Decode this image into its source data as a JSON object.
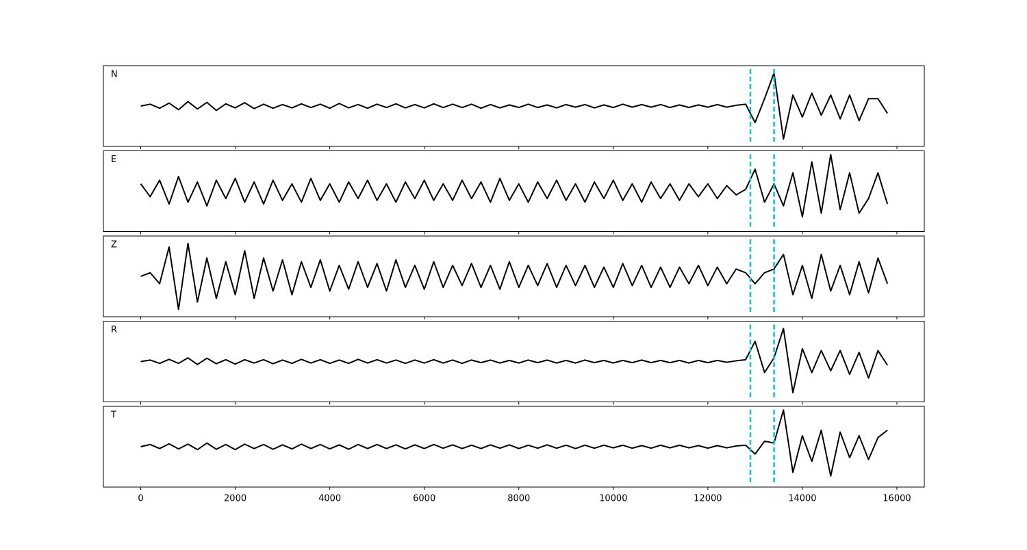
{
  "chart_data": {
    "type": "line",
    "x": [
      0,
      200,
      400,
      600,
      800,
      1000,
      1200,
      1400,
      1600,
      1800,
      2000,
      2200,
      2400,
      2600,
      2800,
      3000,
      3200,
      3400,
      3600,
      3800,
      4000,
      4200,
      4400,
      4600,
      4800,
      5000,
      5200,
      5400,
      5600,
      5800,
      6000,
      6200,
      6400,
      6600,
      6800,
      7000,
      7200,
      7400,
      7600,
      7800,
      8000,
      8200,
      8400,
      8600,
      8800,
      9000,
      9200,
      9400,
      9600,
      9800,
      10000,
      10200,
      10400,
      10600,
      10800,
      11000,
      11200,
      11400,
      11600,
      11800,
      12000,
      12200,
      12400,
      12600,
      12800,
      13000,
      13200,
      13400,
      13600,
      13800,
      14000,
      14200,
      14400,
      14600,
      14800,
      15000,
      15200,
      15400,
      15600,
      15800
    ],
    "series": [
      {
        "name": "N",
        "color": "#000000",
        "values": [
          0,
          0.05,
          -0.06,
          0.08,
          -0.1,
          0.12,
          -0.08,
          0.1,
          -0.12,
          0.06,
          -0.05,
          0.09,
          -0.07,
          0.05,
          -0.06,
          0.04,
          -0.05,
          0.06,
          -0.04,
          0.05,
          -0.06,
          0.07,
          -0.05,
          0.04,
          -0.06,
          0.05,
          -0.04,
          0.06,
          -0.05,
          0.04,
          -0.05,
          0.06,
          -0.04,
          0.05,
          -0.04,
          0.05,
          -0.06,
          0.04,
          -0.05,
          0.03,
          -0.04,
          0.05,
          -0.04,
          0.03,
          -0.05,
          0.04,
          -0.03,
          0.04,
          -0.05,
          0.03,
          -0.04,
          0.05,
          -0.03,
          0.04,
          -0.03,
          0.04,
          -0.04,
          0.03,
          -0.04,
          0.03,
          -0.03,
          0.04,
          -0.03,
          0.02,
          0.05,
          -0.45,
          0.2,
          0.9,
          -0.9,
          0.3,
          -0.3,
          0.35,
          -0.25,
          0.3,
          -0.35,
          0.3,
          -0.4,
          0.2,
          0.2,
          -0.2
        ]
      },
      {
        "name": "E",
        "color": "#000000",
        "values": [
          0.2,
          -0.15,
          0.3,
          -0.35,
          0.4,
          -0.3,
          0.25,
          -0.4,
          0.3,
          -0.2,
          0.35,
          -0.3,
          0.25,
          -0.35,
          0.3,
          -0.25,
          0.2,
          -0.3,
          0.35,
          -0.25,
          0.2,
          -0.3,
          0.25,
          -0.2,
          0.3,
          -0.25,
          0.2,
          -0.3,
          0.25,
          -0.2,
          0.3,
          -0.25,
          0.2,
          -0.25,
          0.3,
          -0.2,
          0.25,
          -0.3,
          0.35,
          -0.25,
          0.2,
          -0.3,
          0.25,
          -0.2,
          0.3,
          -0.25,
          0.2,
          -0.3,
          0.25,
          -0.2,
          0.3,
          -0.25,
          0.2,
          -0.3,
          0.25,
          -0.2,
          0.2,
          -0.25,
          0.2,
          -0.15,
          0.2,
          -0.2,
          0.15,
          -0.1,
          0.05,
          0.6,
          -0.3,
          0.2,
          -0.4,
          0.5,
          -0.7,
          0.8,
          -0.6,
          1.0,
          -0.5,
          0.5,
          -0.6,
          -0.2,
          0.5,
          -0.35
        ]
      },
      {
        "name": "Z",
        "color": "#000000",
        "values": [
          0,
          0.1,
          -0.2,
          0.8,
          -0.9,
          0.9,
          -0.7,
          0.5,
          -0.6,
          0.4,
          -0.5,
          0.7,
          -0.6,
          0.5,
          -0.4,
          0.45,
          -0.5,
          0.4,
          -0.3,
          0.45,
          -0.4,
          0.3,
          -0.35,
          0.4,
          -0.3,
          0.35,
          -0.4,
          0.45,
          -0.3,
          0.3,
          -0.35,
          0.4,
          -0.3,
          0.3,
          -0.25,
          0.35,
          -0.3,
          0.3,
          -0.35,
          0.4,
          -0.3,
          0.3,
          -0.25,
          0.35,
          -0.3,
          0.3,
          -0.25,
          0.3,
          -0.3,
          0.25,
          -0.3,
          0.35,
          -0.25,
          0.3,
          -0.3,
          0.25,
          -0.3,
          0.25,
          -0.2,
          0.3,
          -0.25,
          0.25,
          -0.2,
          0.2,
          0.1,
          -0.2,
          0.1,
          0.2,
          0.6,
          -0.5,
          0.3,
          -0.6,
          0.6,
          -0.4,
          0.3,
          -0.5,
          0.4,
          -0.45,
          0.5,
          -0.2
        ]
      },
      {
        "name": "R",
        "color": "#000000",
        "values": [
          0,
          0.04,
          -0.05,
          0.06,
          -0.05,
          0.1,
          -0.08,
          0.09,
          -0.06,
          0.05,
          -0.07,
          0.05,
          -0.04,
          0.05,
          -0.06,
          0.04,
          -0.05,
          0.06,
          -0.04,
          0.05,
          -0.05,
          0.04,
          -0.05,
          0.06,
          -0.04,
          0.05,
          -0.04,
          0.04,
          -0.05,
          0.04,
          -0.04,
          0.05,
          -0.04,
          0.04,
          -0.05,
          0.04,
          -0.03,
          0.04,
          -0.04,
          0.03,
          -0.04,
          0.04,
          -0.03,
          0.04,
          -0.04,
          0.03,
          -0.04,
          0.04,
          -0.03,
          0.03,
          -0.04,
          0.03,
          -0.03,
          0.04,
          -0.03,
          0.03,
          -0.03,
          0.03,
          -0.04,
          0.03,
          -0.03,
          0.03,
          -0.02,
          0.02,
          0.05,
          0.55,
          -0.3,
          0.1,
          0.9,
          -0.85,
          0.35,
          -0.3,
          0.3,
          -0.25,
          0.3,
          -0.35,
          0.25,
          -0.45,
          0.3,
          -0.1
        ]
      },
      {
        "name": "T",
        "color": "#000000",
        "values": [
          0,
          0.06,
          -0.05,
          0.08,
          -0.06,
          0.07,
          -0.08,
          0.1,
          -0.07,
          0.06,
          -0.08,
          0.07,
          -0.05,
          0.06,
          -0.07,
          0.05,
          -0.06,
          0.07,
          -0.05,
          0.06,
          -0.06,
          0.05,
          -0.07,
          0.06,
          -0.05,
          0.06,
          -0.05,
          0.05,
          -0.06,
          0.05,
          -0.05,
          0.06,
          -0.04,
          0.05,
          -0.05,
          0.04,
          -0.05,
          0.05,
          -0.04,
          0.05,
          -0.05,
          0.04,
          -0.04,
          0.05,
          -0.04,
          0.04,
          -0.05,
          0.04,
          -0.04,
          0.04,
          -0.03,
          0.04,
          -0.04,
          0.03,
          -0.04,
          0.04,
          -0.03,
          0.04,
          -0.03,
          0.03,
          -0.04,
          0.03,
          -0.03,
          0.02,
          0.04,
          -0.2,
          0.15,
          0.1,
          1.0,
          -0.7,
          0.3,
          -0.4,
          0.45,
          -0.8,
          0.4,
          -0.3,
          0.3,
          -0.35,
          0.25,
          0.45
        ]
      }
    ],
    "vlines": [
      12900,
      13400
    ],
    "vline_color": "#17becf",
    "xlim": [
      -790,
      16580
    ],
    "xticks": [
      0,
      2000,
      4000,
      6000,
      8000,
      10000,
      12000,
      14000,
      16000
    ],
    "ylim": [
      -1.1,
      1.1
    ]
  }
}
